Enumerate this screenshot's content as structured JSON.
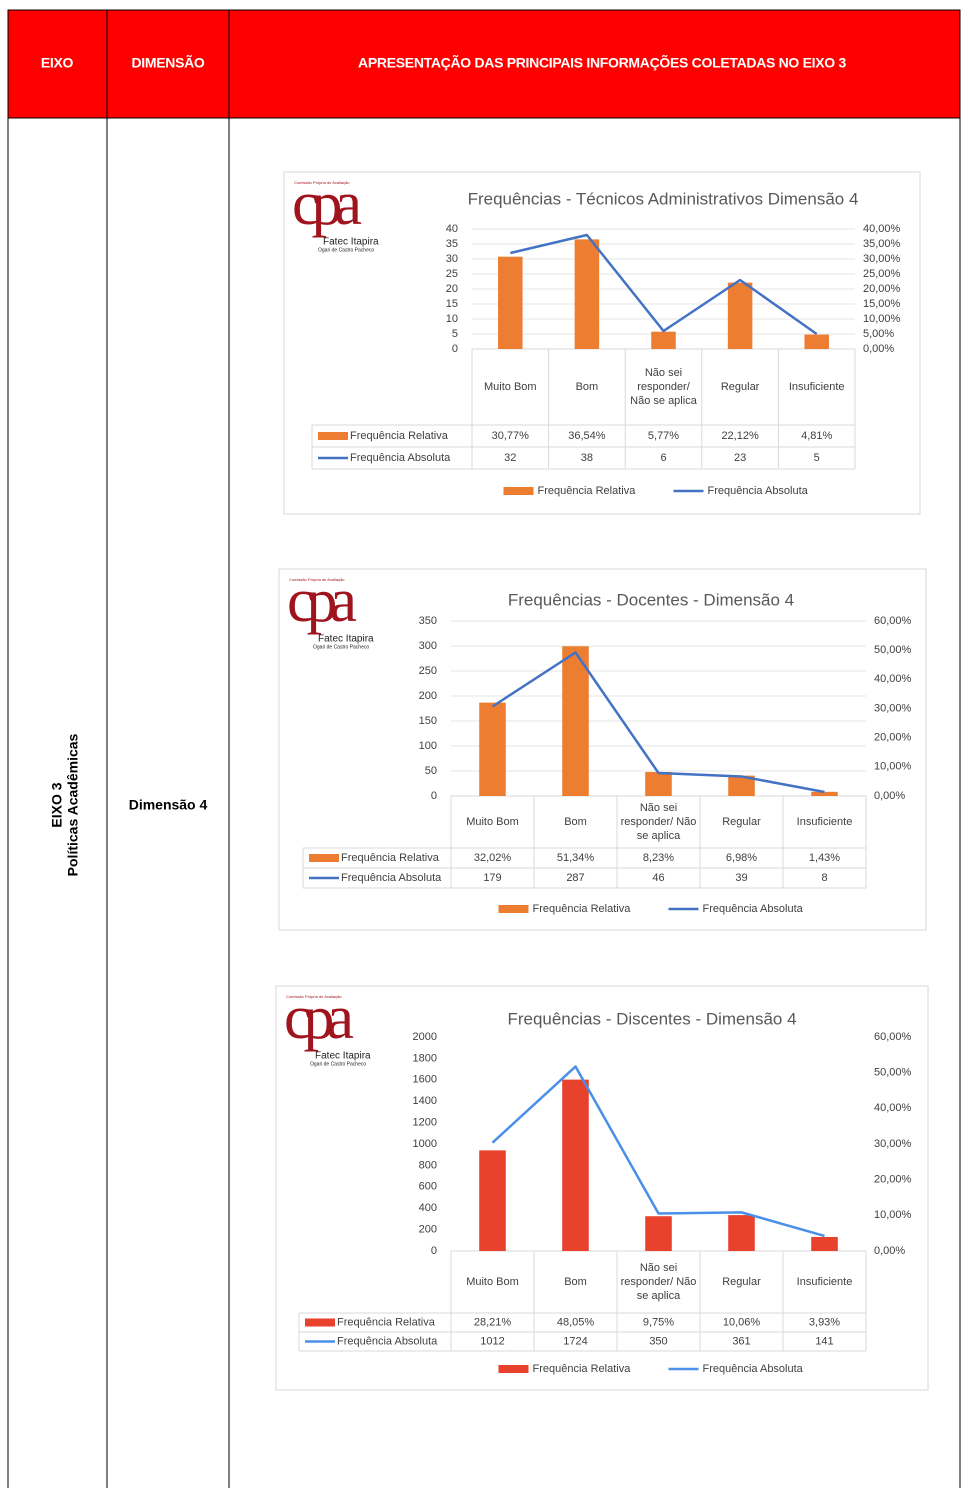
{
  "table": {
    "header": [
      "EIXO",
      "DIMENSÃO",
      "APRESENTAÇÃO DAS PRINCIPAIS INFORMAÇÕES COLETADAS NO EIXO 3"
    ],
    "eixo": "EIXO 3",
    "eixo_name": "Políticas Acadêmicas",
    "dimensao": "Dimensão 4"
  },
  "logo": {
    "mark": "cpa",
    "caption": "Comissão Própria de Avaliação",
    "name": "Fatec Itapira",
    "subname": "Ogari de Castro Pacheco"
  },
  "chart_data": [
    {
      "type": "combo",
      "title": "Frequências - Técnicos Administrativos Dimensão 4",
      "categories": [
        "Muito Bom",
        "Bom",
        "Não sei responder/ Não se aplica",
        "Regular",
        "Insuficiente"
      ],
      "series": [
        {
          "name": "Frequência Relativa",
          "type": "bar",
          "axis": "y2",
          "color": "#ed7d31",
          "values": [
            30.77,
            36.54,
            5.77,
            22.12,
            4.81
          ],
          "value_labels": [
            "30,77%",
            "36,54%",
            "5,77%",
            "22,12%",
            "4,81%"
          ]
        },
        {
          "name": "Frequência Absoluta",
          "type": "line",
          "color": "#4472c4",
          "values": [
            32,
            38,
            6,
            23,
            5
          ]
        }
      ],
      "ylim": [
        0,
        40
      ],
      "yticks": [
        0,
        5,
        10,
        15,
        20,
        25,
        30,
        35,
        40
      ],
      "y2lim": [
        0,
        40
      ],
      "y2ticks": [
        {
          "value": 0,
          "label": "0,00%"
        },
        {
          "value": 5,
          "label": "5,00%"
        },
        {
          "value": 10,
          "label": "10,00%"
        },
        {
          "value": 15,
          "label": "15,00%"
        },
        {
          "value": 20,
          "label": "20,00%"
        },
        {
          "value": 25,
          "label": "25,00%"
        },
        {
          "value": 30,
          "label": "30,00%"
        },
        {
          "value": 35,
          "label": "35,00%"
        },
        {
          "value": 40,
          "label": "40,00%"
        }
      ],
      "grid": true,
      "legend": "bottom"
    },
    {
      "type": "combo",
      "title": "Frequências - Docentes - Dimensão 4",
      "categories": [
        "Muito Bom",
        "Bom",
        "Não sei responder/ Não se aplica",
        "Regular",
        "Insuficiente"
      ],
      "series": [
        {
          "name": "Frequência Relativa",
          "type": "bar",
          "axis": "y2",
          "color": "#ed7d31",
          "values": [
            32.02,
            51.34,
            8.23,
            6.98,
            1.43
          ],
          "value_labels": [
            "32,02%",
            "51,34%",
            "8,23%",
            "6,98%",
            "1,43%"
          ]
        },
        {
          "name": "Frequência Absoluta",
          "type": "line",
          "color": "#4472c4",
          "values": [
            179,
            287,
            46,
            39,
            8
          ]
        }
      ],
      "ylim": [
        0,
        350
      ],
      "yticks": [
        0,
        50,
        100,
        150,
        200,
        250,
        300,
        350
      ],
      "y2lim": [
        0,
        60
      ],
      "y2ticks": [
        {
          "value": 0,
          "label": "0,00%"
        },
        {
          "value": 10,
          "label": "10,00%"
        },
        {
          "value": 20,
          "label": "20,00%"
        },
        {
          "value": 30,
          "label": "30,00%"
        },
        {
          "value": 40,
          "label": "40,00%"
        },
        {
          "value": 50,
          "label": "50,00%"
        },
        {
          "value": 60,
          "label": "60,00%"
        }
      ],
      "grid": true,
      "legend": "bottom"
    },
    {
      "type": "combo",
      "title": "Frequências - Discentes - Dimensão 4",
      "categories": [
        "Muito Bom",
        "Bom",
        "Não sei responder/ Não se aplica",
        "Regular",
        "Insuficiente"
      ],
      "series": [
        {
          "name": "Frequência Relativa",
          "type": "bar",
          "axis": "y2",
          "color": "#e8412c",
          "values": [
            28.21,
            48.05,
            9.75,
            10.06,
            3.93
          ],
          "value_labels": [
            "28,21%",
            "48,05%",
            "9,75%",
            "10,06%",
            "3,93%"
          ]
        },
        {
          "name": "Frequência Absoluta",
          "type": "line",
          "color": "#4a8fe8",
          "values": [
            1012,
            1724,
            350,
            361,
            141
          ]
        }
      ],
      "ylim": [
        0,
        2000
      ],
      "yticks": [
        0,
        200,
        400,
        600,
        800,
        1000,
        1200,
        1400,
        1600,
        1800,
        2000
      ],
      "y2lim": [
        0,
        60
      ],
      "y2ticks": [
        {
          "value": 0,
          "label": "0,00%"
        },
        {
          "value": 10,
          "label": "10,00%"
        },
        {
          "value": 20,
          "label": "20,00%"
        },
        {
          "value": 30,
          "label": "30,00%"
        },
        {
          "value": 40,
          "label": "40,00%"
        },
        {
          "value": 50,
          "label": "50,00%"
        },
        {
          "value": 60,
          "label": "60,00%"
        }
      ],
      "grid": false,
      "legend": "bottom"
    }
  ]
}
